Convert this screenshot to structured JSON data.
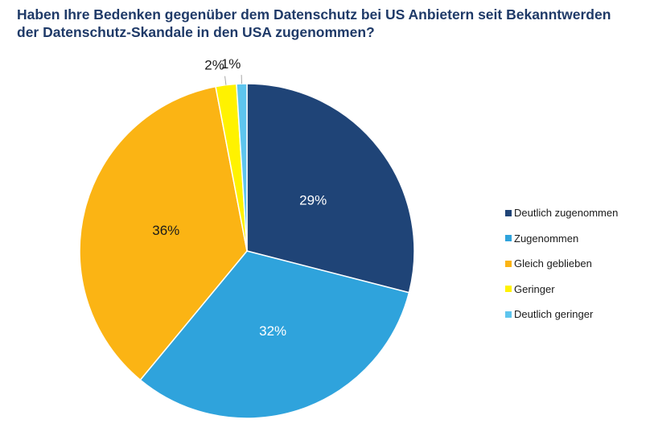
{
  "chart_data": {
    "type": "pie",
    "title_lines": [
      "Haben Ihre Bedenken gegenüber dem Datenschutz bei US Anbietern seit Bekanntwerden",
      "der Datenschutz-Skandale in den USA zugenommen?"
    ],
    "categories": [
      "Deutlich zugenommen",
      "Zugenommen",
      "Gleich geblieben",
      "Geringer",
      "Deutlich geringer"
    ],
    "values": [
      29,
      32,
      36,
      2,
      1
    ],
    "data_labels": [
      "29%",
      "32%",
      "36%",
      "2%",
      "1%"
    ],
    "colors": [
      "#1f4477",
      "#2fa3dc",
      "#fbb414",
      "#fff200",
      "#5ec5ee"
    ],
    "label_colors": [
      "#ffffff",
      "#ffffff",
      "#1a1a1a",
      "#1a1a1a",
      "#1a1a1a"
    ],
    "legend_position": "right"
  }
}
